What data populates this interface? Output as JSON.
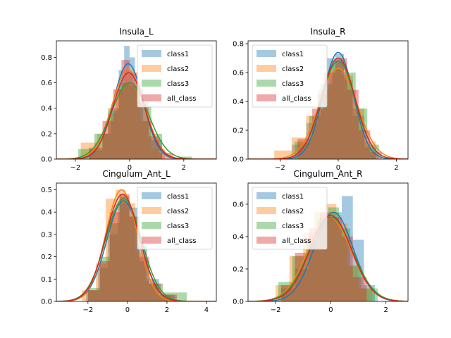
{
  "figure": {
    "background": "#ffffff"
  },
  "chart_data": [
    {
      "type": "histogram-kde",
      "title": "Insula_L",
      "xlim": [
        -2.7,
        3.2
      ],
      "ylim": [
        0,
        0.93
      ],
      "xticks": [
        -2,
        0,
        2
      ],
      "yticks": [
        0.0,
        0.2,
        0.4,
        0.6,
        0.8
      ],
      "legend_position": "upper right",
      "series": [
        {
          "name": "class1",
          "color": "#1f77b4",
          "bins": [
            [
              -1.5,
              -1,
              0.07
            ],
            [
              -1,
              -0.7,
              0.2
            ],
            [
              -0.7,
              -0.4,
              0.38
            ],
            [
              -0.4,
              -0.2,
              0.7
            ],
            [
              -0.2,
              0,
              0.89
            ],
            [
              0,
              0.2,
              0.8
            ],
            [
              0.2,
              0.5,
              0.55
            ],
            [
              0.5,
              0.8,
              0.3
            ],
            [
              0.8,
              1.2,
              0.15
            ]
          ],
          "kde": {
            "mu": -0.05,
            "sigma": 0.55,
            "peak": 0.75
          }
        },
        {
          "name": "class2",
          "color": "#ff7f0e",
          "bins": [
            [
              -1.8,
              -1.2,
              0.13
            ],
            [
              -1.2,
              -0.8,
              0.2
            ],
            [
              -0.8,
              -0.5,
              0.36
            ],
            [
              -0.5,
              -0.2,
              0.55
            ],
            [
              -0.2,
              0.1,
              0.7
            ],
            [
              0.1,
              0.4,
              0.6
            ],
            [
              0.4,
              0.8,
              0.3
            ],
            [
              0.8,
              1.3,
              0.08
            ]
          ],
          "kde": {
            "mu": -0.05,
            "sigma": 0.6,
            "peak": 0.7
          }
        },
        {
          "name": "class3",
          "color": "#2ca02c",
          "bins": [
            [
              -1.9,
              -1.3,
              0.08
            ],
            [
              -1.3,
              -0.8,
              0.2
            ],
            [
              -0.8,
              -0.4,
              0.4
            ],
            [
              -0.4,
              0,
              0.6
            ],
            [
              0,
              0.4,
              0.58
            ],
            [
              0.4,
              0.8,
              0.42
            ],
            [
              0.8,
              1.2,
              0.2
            ],
            [
              1.8,
              2.3,
              0.02
            ]
          ],
          "kde": {
            "mu": -0.0,
            "sigma": 0.68,
            "peak": 0.6
          }
        },
        {
          "name": "all_class",
          "color": "#d62728",
          "bins": [
            [
              -1.5,
              -1,
              0.09
            ],
            [
              -1,
              -0.6,
              0.3
            ],
            [
              -0.6,
              -0.3,
              0.55
            ],
            [
              -0.3,
              0,
              0.78
            ],
            [
              0,
              0.3,
              0.68
            ],
            [
              0.3,
              0.7,
              0.45
            ],
            [
              0.7,
              1.1,
              0.18
            ],
            [
              1.1,
              1.6,
              0.05
            ]
          ],
          "kde": {
            "mu": -0.03,
            "sigma": 0.58,
            "peak": 0.68
          }
        }
      ]
    },
    {
      "type": "histogram-kde",
      "title": "Insula_R",
      "xlim": [
        -3.1,
        2.4
      ],
      "ylim": [
        0,
        0.82
      ],
      "xticks": [
        -2,
        0,
        2
      ],
      "yticks": [
        0.0,
        0.2,
        0.4,
        0.6,
        0.8
      ],
      "legend_position": "upper left",
      "series": [
        {
          "name": "class1",
          "color": "#1f77b4",
          "bins": [
            [
              -1.6,
              -1.1,
              0.1
            ],
            [
              -1.1,
              -0.7,
              0.25
            ],
            [
              -0.7,
              -0.4,
              0.45
            ],
            [
              -0.4,
              -0.1,
              0.7
            ],
            [
              -0.1,
              0.2,
              0.73
            ],
            [
              0.2,
              0.5,
              0.55
            ],
            [
              0.5,
              0.9,
              0.3
            ],
            [
              0.9,
              1.3,
              0.08
            ]
          ],
          "kde": {
            "mu": 0.0,
            "sigma": 0.52,
            "peak": 0.74
          }
        },
        {
          "name": "class2",
          "color": "#ff7f0e",
          "bins": [
            [
              -2.2,
              -1.6,
              0.06
            ],
            [
              -1.6,
              -1.1,
              0.15
            ],
            [
              -1.1,
              -0.7,
              0.3
            ],
            [
              -0.7,
              -0.3,
              0.48
            ],
            [
              -0.3,
              0.1,
              0.62
            ],
            [
              0.1,
              0.5,
              0.58
            ],
            [
              0.5,
              0.9,
              0.35
            ],
            [
              0.9,
              1.3,
              0.12
            ]
          ],
          "kde": {
            "mu": 0.0,
            "sigma": 0.65,
            "peak": 0.63
          }
        },
        {
          "name": "class3",
          "color": "#2ca02c",
          "bins": [
            [
              -1.5,
              -1,
              0.12
            ],
            [
              -1,
              -0.6,
              0.3
            ],
            [
              -0.6,
              -0.2,
              0.52
            ],
            [
              -0.2,
              0.2,
              0.68
            ],
            [
              0.2,
              0.6,
              0.6
            ],
            [
              0.6,
              1,
              0.35
            ],
            [
              1,
              1.4,
              0.1
            ]
          ],
          "kde": {
            "mu": 0.0,
            "sigma": 0.58,
            "peak": 0.68
          }
        },
        {
          "name": "all_class",
          "color": "#d62728",
          "bins": [
            [
              -1.4,
              -0.9,
              0.14
            ],
            [
              -0.9,
              -0.5,
              0.35
            ],
            [
              -0.5,
              -0.1,
              0.6
            ],
            [
              -0.1,
              0.3,
              0.7
            ],
            [
              0.3,
              0.7,
              0.48
            ],
            [
              0.7,
              1.1,
              0.2
            ],
            [
              1.1,
              1.5,
              0.05
            ]
          ],
          "kde": {
            "mu": 0.0,
            "sigma": 0.58,
            "peak": 0.7
          }
        }
      ]
    },
    {
      "type": "histogram-kde",
      "title": "Cingulum_Ant_L",
      "xlim": [
        -3.6,
        4.5
      ],
      "ylim": [
        0,
        0.53
      ],
      "xticks": [
        -2,
        0,
        2,
        4
      ],
      "yticks": [
        0.0,
        0.1,
        0.2,
        0.3,
        0.4,
        0.5
      ],
      "legend_position": "upper right",
      "series": [
        {
          "name": "class1",
          "color": "#1f77b4",
          "bins": [
            [
              -2.1,
              -1.5,
              0.05
            ],
            [
              -1.5,
              -1,
              0.15
            ],
            [
              -1,
              -0.5,
              0.3
            ],
            [
              -0.5,
              0,
              0.44
            ],
            [
              0,
              0.5,
              0.42
            ],
            [
              0.5,
              1,
              0.25
            ],
            [
              1,
              1.6,
              0.1
            ],
            [
              1.6,
              2.4,
              0.03
            ]
          ],
          "kde": {
            "mu": -0.2,
            "sigma": 0.85,
            "peak": 0.45
          }
        },
        {
          "name": "class2",
          "color": "#ff7f0e",
          "bins": [
            [
              -2.3,
              -1.6,
              0.05
            ],
            [
              -1.6,
              -1.1,
              0.17
            ],
            [
              -1.1,
              -0.6,
              0.46
            ],
            [
              -0.6,
              -0.1,
              0.5
            ],
            [
              -0.1,
              0.4,
              0.44
            ],
            [
              0.4,
              0.9,
              0.22
            ],
            [
              0.9,
              1.5,
              0.09
            ],
            [
              1.5,
              2.2,
              0.03
            ]
          ],
          "kde": {
            "mu": -0.3,
            "sigma": 0.8,
            "peak": 0.5
          }
        },
        {
          "name": "class3",
          "color": "#2ca02c",
          "bins": [
            [
              -2,
              -1.4,
              0.06
            ],
            [
              -1.4,
              -0.9,
              0.2
            ],
            [
              -0.9,
              -0.4,
              0.35
            ],
            [
              -0.4,
              0.1,
              0.47
            ],
            [
              0.1,
              0.6,
              0.38
            ],
            [
              0.6,
              1.1,
              0.18
            ],
            [
              1.1,
              1.8,
              0.08
            ],
            [
              1.8,
              3,
              0.04
            ]
          ],
          "kde": {
            "mu": -0.2,
            "sigma": 0.9,
            "peak": 0.46
          }
        },
        {
          "name": "all_class",
          "color": "#d62728",
          "bins": [
            [
              -2,
              -1.4,
              0.05
            ],
            [
              -1.4,
              -0.9,
              0.18
            ],
            [
              -0.9,
              -0.4,
              0.4
            ],
            [
              -0.4,
              0.1,
              0.48
            ],
            [
              0.1,
              0.6,
              0.38
            ],
            [
              0.6,
              1.1,
              0.2
            ],
            [
              1.1,
              1.7,
              0.08
            ],
            [
              1.7,
              2.5,
              0.03
            ]
          ],
          "kde": {
            "mu": -0.25,
            "sigma": 0.85,
            "peak": 0.48
          }
        }
      ]
    },
    {
      "type": "histogram-kde",
      "title": "Cingulum_Ant_R",
      "xlim": [
        -3.0,
        2.8
      ],
      "ylim": [
        0,
        0.73
      ],
      "xticks": [
        -2,
        0,
        2
      ],
      "yticks": [
        0.0,
        0.2,
        0.4,
        0.6
      ],
      "legend_position": "upper left",
      "series": [
        {
          "name": "class1",
          "color": "#1f77b4",
          "bins": [
            [
              -1.8,
              -1.3,
              0.08
            ],
            [
              -1.3,
              -0.8,
              0.2
            ],
            [
              -0.8,
              -0.4,
              0.35
            ],
            [
              -0.4,
              0,
              0.52
            ],
            [
              0,
              0.4,
              0.55
            ],
            [
              0.4,
              0.8,
              0.65
            ],
            [
              0.8,
              1.2,
              0.38
            ],
            [
              1.2,
              1.6,
              0.1
            ]
          ],
          "kde": {
            "mu": 0.1,
            "sigma": 0.7,
            "peak": 0.55
          }
        },
        {
          "name": "class2",
          "color": "#ff7f0e",
          "bins": [
            [
              -2,
              -1.5,
              0.1
            ],
            [
              -1.5,
              -1,
              0.28
            ],
            [
              -1,
              -0.6,
              0.42
            ],
            [
              -0.6,
              -0.2,
              0.55
            ],
            [
              -0.2,
              0.2,
              0.6
            ],
            [
              0.2,
              0.6,
              0.48
            ],
            [
              0.6,
              1,
              0.22
            ],
            [
              1,
              1.5,
              0.08
            ]
          ],
          "kde": {
            "mu": -0.05,
            "sigma": 0.78,
            "peak": 0.52
          }
        },
        {
          "name": "class3",
          "color": "#2ca02c",
          "bins": [
            [
              -1.9,
              -1.4,
              0.12
            ],
            [
              -1.4,
              -0.9,
              0.28
            ],
            [
              -0.9,
              -0.5,
              0.38
            ],
            [
              -0.5,
              -0.1,
              0.5
            ],
            [
              -0.1,
              0.3,
              0.58
            ],
            [
              0.3,
              0.7,
              0.45
            ],
            [
              0.7,
              1.1,
              0.22
            ],
            [
              1.1,
              1.7,
              0.08
            ]
          ],
          "kde": {
            "mu": 0.0,
            "sigma": 0.78,
            "peak": 0.52
          }
        },
        {
          "name": "all_class",
          "color": "#d62728",
          "bins": [
            [
              -1.8,
              -1.3,
              0.1
            ],
            [
              -1.3,
              -0.8,
              0.3
            ],
            [
              -0.8,
              -0.4,
              0.45
            ],
            [
              -0.4,
              0,
              0.55
            ],
            [
              0,
              0.4,
              0.52
            ],
            [
              0.4,
              0.8,
              0.4
            ],
            [
              0.8,
              1.3,
              0.15
            ]
          ],
          "kde": {
            "mu": 0.0,
            "sigma": 0.75,
            "peak": 0.53
          }
        }
      ]
    }
  ]
}
